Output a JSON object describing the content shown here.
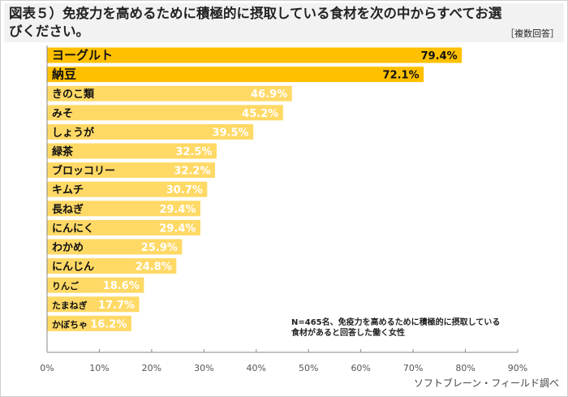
{
  "title": "図表５）免疫力を高めるために積極的に摂取している食材を次の中からすべてお選びください。",
  "note": "［複数回答］",
  "annotation_line1": "N=465名、免疫力を高めるために積極的に摂取している",
  "annotation_line2": "食材があると回答した働く女性",
  "source": "ソフトブレーン・フィールド調べ",
  "colors": {
    "top": "#FFC000",
    "rest": "#FFD966"
  },
  "chart_data": {
    "type": "bar",
    "orientation": "horizontal",
    "categories": [
      "ヨーグルト",
      "納豆",
      "きのこ類",
      "みそ",
      "しょうが",
      "緑茶",
      "ブロッコリー",
      "キムチ",
      "長ねぎ",
      "にんにく",
      "わかめ",
      "にんじん",
      "りんご",
      "たまねぎ",
      "かぼちゃ"
    ],
    "values": [
      79.4,
      72.1,
      46.9,
      45.2,
      39.5,
      32.5,
      32.2,
      30.7,
      29.4,
      29.4,
      25.9,
      24.8,
      18.6,
      17.7,
      16.2
    ],
    "data_labels": [
      "79.4%",
      "72.1%",
      "46.9%",
      "45.2%",
      "39.5%",
      "32.5%",
      "32.2%",
      "30.7%",
      "29.4%",
      "29.4%",
      "25.9%",
      "24.8%",
      "18.6%",
      "17.7%",
      "16.2%"
    ],
    "xlim": [
      0,
      90
    ],
    "xticks": [
      "0%",
      "10%",
      "20%",
      "30%",
      "40%",
      "50%",
      "60%",
      "70%",
      "80%",
      "90%"
    ],
    "grid": false
  }
}
